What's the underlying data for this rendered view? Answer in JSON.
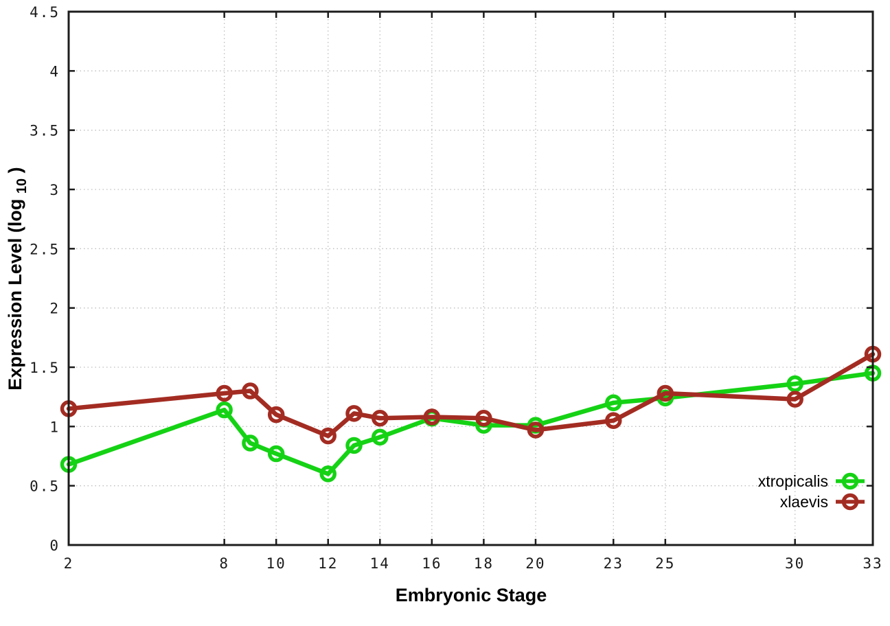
{
  "chart_data": {
    "type": "line",
    "title": "",
    "xlabel": "Embryonic Stage",
    "ylabel": "Expression Level (log10)",
    "ylabel_parts": {
      "pre": "Expression Level (log",
      "sub": "10",
      "post": ")"
    },
    "xlim": [
      2,
      33
    ],
    "ylim": [
      0,
      4.5
    ],
    "xticks": [
      2,
      8,
      10,
      12,
      14,
      16,
      18,
      20,
      23,
      25,
      30,
      33
    ],
    "xtick_labels": [
      "2",
      "8",
      "10",
      "12",
      "14",
      "16",
      "18",
      "20",
      "23",
      "25",
      "30",
      "33"
    ],
    "yticks": [
      0,
      0.5,
      1,
      1.5,
      2,
      2.5,
      3,
      3.5,
      4,
      4.5
    ],
    "ytick_labels": [
      "0",
      "0.5",
      "1",
      "1.5",
      "2",
      "2.5",
      "3",
      "3.5",
      "4",
      "4.5"
    ],
    "grid": true,
    "grid_style": "dotted",
    "legend_position": "inside-bottom-right",
    "marker": "open-circle",
    "x": [
      2,
      8,
      9,
      10,
      12,
      13,
      14,
      16,
      18,
      20,
      23,
      25,
      30,
      33
    ],
    "series": [
      {
        "name": "xtropicalis",
        "color": "#15d215",
        "values": [
          0.68,
          1.14,
          0.86,
          0.77,
          0.6,
          0.84,
          0.91,
          1.07,
          1.01,
          1.01,
          1.2,
          1.24,
          1.36,
          1.45
        ]
      },
      {
        "name": "xlaevis",
        "color": "#a32c22",
        "values": [
          1.15,
          1.28,
          1.3,
          1.1,
          0.92,
          1.11,
          1.07,
          1.08,
          1.07,
          0.97,
          1.05,
          1.28,
          1.23,
          1.61
        ]
      }
    ]
  },
  "style": {
    "axis_color": "#1c1c1c",
    "grid_color": "#bdbdbd",
    "tick_label_color": "#1a1a1a",
    "background": "#ffffff"
  }
}
